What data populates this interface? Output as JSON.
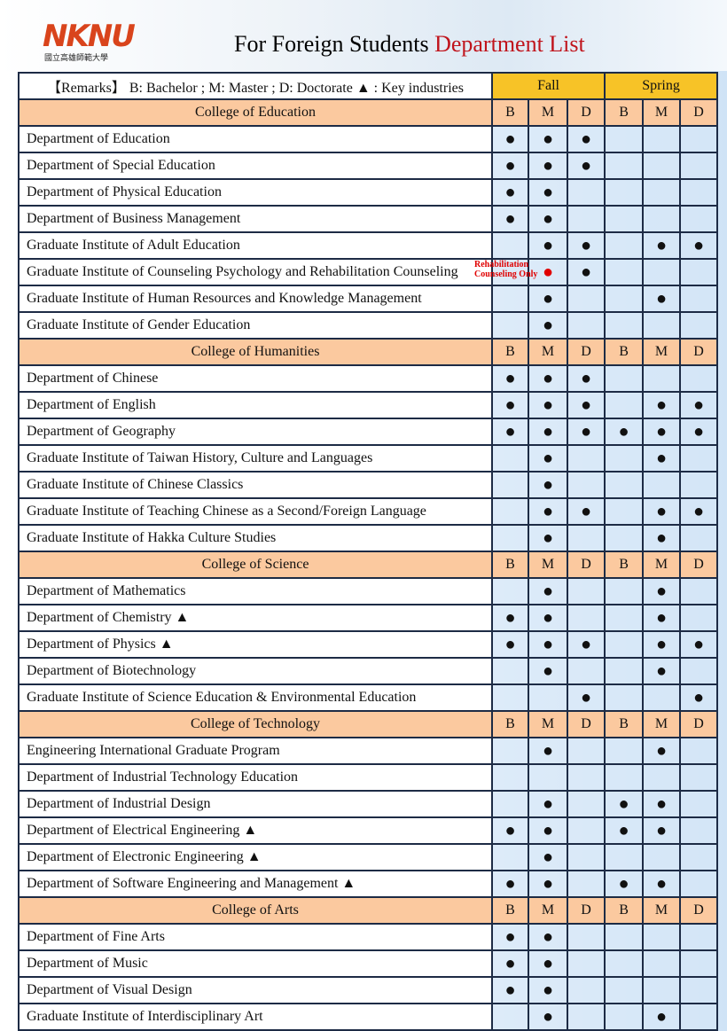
{
  "header": {
    "logo": "NKNU",
    "logo_subtitle": "國立高雄師範大學",
    "title": "For Foreign Students",
    "title_highlight": "Department List"
  },
  "table": {
    "remarks": "【Remarks】 B: Bachelor ; M: Master ; D: Doctorate ▲ : Key industries",
    "terms": [
      "Fall",
      "Spring"
    ],
    "colleges": [
      {
        "name": "College of Education",
        "levels": [
          "B",
          "M",
          "D",
          "B",
          "M",
          "D"
        ],
        "departments": [
          {
            "name": "Department of Education",
            "offered": [
              "●",
              "●",
              "●",
              null,
              null,
              null
            ]
          },
          {
            "name": "Department of Special Education",
            "offered": [
              "●",
              "●",
              "●",
              null,
              null,
              null
            ]
          },
          {
            "name": "Department of Physical Education",
            "offered": [
              "●",
              "●",
              null,
              null,
              null,
              null
            ]
          },
          {
            "name": "Department of Business Management",
            "offered": [
              "●",
              "●",
              null,
              null,
              null,
              null
            ]
          },
          {
            "name": "Graduate Institute of Adult Education",
            "offered": [
              null,
              "●",
              "●",
              null,
              "●",
              "●"
            ]
          },
          {
            "name": "Graduate Institute of Counseling Psychology and Rehabilitation Counseling",
            "offered": [
              null,
              {
                "mark": "●",
                "color": "#e00000",
                "note": "Rehabilitation Counseling Only"
              },
              "●",
              null,
              null,
              null
            ]
          },
          {
            "name": "Graduate Institute of Human Resources and Knowledge Management",
            "offered": [
              null,
              "●",
              null,
              null,
              "●",
              null
            ]
          },
          {
            "name": "Graduate Institute of Gender Education",
            "offered": [
              null,
              "●",
              null,
              null,
              null,
              null
            ]
          }
        ]
      },
      {
        "name": "College of Humanities",
        "levels": [
          "B",
          "M",
          "D",
          "B",
          "M",
          "D"
        ],
        "departments": [
          {
            "name": "Department of Chinese",
            "offered": [
              "●",
              "●",
              "●",
              null,
              null,
              null
            ]
          },
          {
            "name": "Department of English",
            "offered": [
              "●",
              "●",
              "●",
              null,
              "●",
              "●"
            ]
          },
          {
            "name": "Department of Geography",
            "offered": [
              "●",
              "●",
              "●",
              "●",
              "●",
              "●"
            ]
          },
          {
            "name": "Graduate Institute of Taiwan History, Culture and Languages",
            "offered": [
              null,
              "●",
              null,
              null,
              "●",
              null
            ]
          },
          {
            "name": "Graduate Institute of Chinese Classics",
            "offered": [
              null,
              "●",
              null,
              null,
              null,
              null
            ]
          },
          {
            "name": "Graduate Institute of Teaching Chinese as a Second/Foreign Language",
            "offered": [
              null,
              "●",
              "●",
              null,
              "●",
              "●"
            ]
          },
          {
            "name": "Graduate Institute of Hakka Culture Studies",
            "offered": [
              null,
              "●",
              null,
              null,
              "●",
              null
            ]
          }
        ]
      },
      {
        "name": "College of Science",
        "levels": [
          "B",
          "M",
          "D",
          "B",
          "M",
          "D"
        ],
        "departments": [
          {
            "name": "Department of Mathematics",
            "offered": [
              null,
              "●",
              null,
              null,
              "●",
              null
            ]
          },
          {
            "name": "Department of Chemistry ▲",
            "offered": [
              "●",
              "●",
              null,
              null,
              "●",
              null
            ]
          },
          {
            "name": "Department of Physics ▲",
            "offered": [
              "●",
              "●",
              "●",
              null,
              "●",
              "●"
            ]
          },
          {
            "name": "Department of Biotechnology",
            "offered": [
              null,
              "●",
              null,
              null,
              "●",
              null
            ]
          },
          {
            "name": "Graduate Institute of Science Education & Environmental Education",
            "offered": [
              null,
              null,
              "●",
              null,
              null,
              "●"
            ]
          }
        ]
      },
      {
        "name": "College of Technology",
        "levels": [
          "B",
          "M",
          "D",
          "B",
          "M",
          "D"
        ],
        "departments": [
          {
            "name": "Engineering International Graduate Program",
            "offered": [
              null,
              "●",
              null,
              null,
              "●",
              null
            ]
          },
          {
            "name": "Department of Industrial Technology Education",
            "offered": [
              null,
              null,
              null,
              null,
              null,
              null
            ]
          },
          {
            "name": "Department of Industrial Design",
            "offered": [
              null,
              "●",
              null,
              "●",
              "●",
              null
            ]
          },
          {
            "name": "Department of Electrical Engineering ▲",
            "offered": [
              "●",
              "●",
              null,
              "●",
              "●",
              null
            ]
          },
          {
            "name": "Department of Electronic Engineering ▲",
            "offered": [
              null,
              "●",
              null,
              null,
              null,
              null
            ]
          },
          {
            "name": "Department of  Software Engineering and Management ▲",
            "offered": [
              "●",
              "●",
              null,
              "●",
              "●",
              null
            ]
          }
        ]
      },
      {
        "name": "College of Arts",
        "levels": [
          "B",
          "M",
          "D",
          "B",
          "M",
          "D"
        ],
        "departments": [
          {
            "name": "Department of Fine Arts",
            "offered": [
              "●",
              "●",
              null,
              null,
              null,
              null
            ]
          },
          {
            "name": "Department of Music",
            "offered": [
              "●",
              "●",
              null,
              null,
              null,
              null
            ]
          },
          {
            "name": "Department of Visual Design",
            "offered": [
              "●",
              "●",
              null,
              null,
              null,
              null
            ]
          },
          {
            "name": "Graduate Institute of Interdisciplinary Art",
            "offered": [
              null,
              "●",
              null,
              null,
              "●",
              null
            ]
          }
        ]
      }
    ]
  }
}
